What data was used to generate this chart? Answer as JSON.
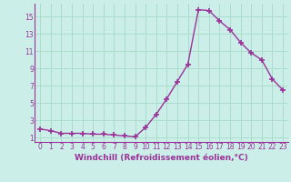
{
  "x": [
    0,
    1,
    2,
    3,
    4,
    5,
    6,
    7,
    8,
    9,
    10,
    11,
    12,
    13,
    14,
    15,
    16,
    17,
    18,
    19,
    20,
    21,
    22,
    23
  ],
  "y": [
    2.0,
    1.8,
    1.5,
    1.5,
    1.5,
    1.4,
    1.4,
    1.3,
    1.2,
    1.1,
    2.2,
    3.7,
    5.5,
    7.5,
    9.5,
    15.8,
    15.7,
    14.5,
    13.5,
    12.0,
    10.8,
    10.0,
    7.8,
    6.5
  ],
  "line_color": "#993399",
  "marker": "+",
  "marker_size": 4,
  "marker_linewidth": 1.2,
  "bg_color": "#cceee8",
  "grid_color": "#aaddcc",
  "axis_color": "#993399",
  "xlabel": "Windchill (Refroidissement éolien,°C)",
  "xlim": [
    -0.5,
    23.5
  ],
  "ylim": [
    0.5,
    16.5
  ],
  "xticks": [
    0,
    1,
    2,
    3,
    4,
    5,
    6,
    7,
    8,
    9,
    10,
    11,
    12,
    13,
    14,
    15,
    16,
    17,
    18,
    19,
    20,
    21,
    22,
    23
  ],
  "yticks": [
    1,
    3,
    5,
    7,
    9,
    11,
    13,
    15
  ],
  "tick_font_size": 5.5,
  "xlabel_font_size": 6.5,
  "line_width": 1.0
}
